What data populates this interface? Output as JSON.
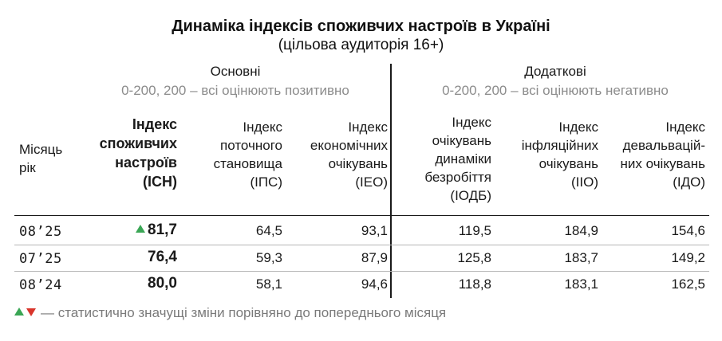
{
  "title": "Динаміка індексів споживчих настроїв в Україні",
  "subtitle": "(цільова аудиторія 16+)",
  "groups": {
    "main": {
      "label": "Основні",
      "range": "0-200, 200 – всі оцінюють позитивно"
    },
    "extra": {
      "label": "Додаткові",
      "range": "0-200, 200 – всі оцінюють негативно"
    }
  },
  "headers": {
    "month": [
      "Місяць",
      "рік"
    ],
    "ich": [
      "Індекс",
      "споживчих",
      "настроїв",
      "(ІСН)"
    ],
    "ips": [
      "Індекс",
      "поточного",
      "становища",
      "(ІПС)"
    ],
    "ieo": [
      "Індекс",
      "економічних",
      "очікувань",
      "(ІЕО)"
    ],
    "iodb": [
      "Індекс",
      "очікувань",
      "динаміки",
      "безробіття",
      "(ІОДБ)"
    ],
    "iio": [
      "Індекс",
      "інфляційних",
      "очікувань",
      "(ІІО)"
    ],
    "ido": [
      "Індекс",
      "девальвацій-",
      "них очікувань",
      "(ІДО)"
    ]
  },
  "chart_data": {
    "type": "table",
    "title": "Динаміка індексів споживчих настроїв в Україні",
    "columns": [
      "Місяць рік",
      "ІСН",
      "ІПС",
      "ІЕО",
      "ІОДБ",
      "ІІО",
      "ІДО"
    ],
    "rows": [
      {
        "month": "08’25",
        "ich": "81,7",
        "ips": "64,5",
        "ieo": "93,1",
        "iodb": "119,5",
        "iio": "184,9",
        "ido": "154,6",
        "ich_change": "up"
      },
      {
        "month": "07’25",
        "ich": "76,4",
        "ips": "59,3",
        "ieo": "87,9",
        "iodb": "125,8",
        "iio": "183,7",
        "ido": "149,2",
        "ich_change": ""
      },
      {
        "month": "08’24",
        "ich": "80,0",
        "ips": "58,1",
        "ieo": "94,6",
        "iodb": "118,8",
        "iio": "183,1",
        "ido": "162,5",
        "ich_change": ""
      }
    ]
  },
  "legend": {
    "text": "— статистично значущі зміни порівняно до попереднього місяця"
  },
  "colors": {
    "up": "#3aa655",
    "down": "#d9352b",
    "muted": "#8c8c8c"
  },
  "icons": {
    "up": "triangle-up-icon",
    "down": "triangle-down-icon"
  }
}
